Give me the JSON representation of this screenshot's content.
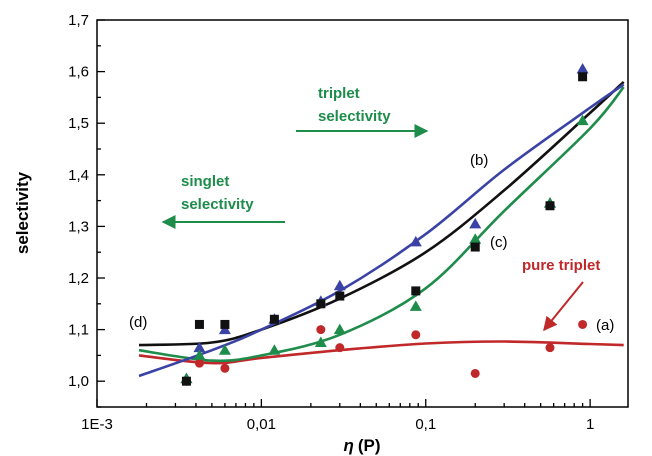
{
  "chart_data": {
    "type": "scatter",
    "xscale": "log",
    "xlim": [
      0.001,
      1.7
    ],
    "ylim": [
      0.95,
      1.7
    ],
    "xticks": [
      "1E-3",
      "0,01",
      "0,1",
      "1"
    ],
    "xtick_values": [
      0.001,
      0.01,
      0.1,
      1
    ],
    "yticks": [
      "1,0",
      "1,1",
      "1,2",
      "1,3",
      "1,4",
      "1,5",
      "1,6",
      "1,7"
    ],
    "ytick_values": [
      1.0,
      1.1,
      1.2,
      1.3,
      1.4,
      1.5,
      1.6,
      1.7
    ],
    "xlabel_symbol": "η",
    "xlabel_unit": "(P)",
    "ylabel": "selectivity",
    "series": [
      {
        "label": "(a)",
        "marker": "circle",
        "color": "#c0282a",
        "points": [
          [
            0.0035,
            1.0
          ],
          [
            0.0042,
            1.035
          ],
          [
            0.006,
            1.025
          ],
          [
            0.023,
            1.1
          ],
          [
            0.03,
            1.065
          ],
          [
            0.087,
            1.09
          ],
          [
            0.2,
            1.015
          ],
          [
            0.57,
            1.065
          ],
          [
            0.9,
            1.11
          ]
        ],
        "fit": [
          [
            0.0018,
            1.05
          ],
          [
            0.005,
            1.035
          ],
          [
            0.01,
            1.045
          ],
          [
            0.03,
            1.06
          ],
          [
            0.1,
            1.073
          ],
          [
            0.3,
            1.077
          ],
          [
            1,
            1.072
          ],
          [
            1.6,
            1.07
          ]
        ]
      },
      {
        "label": "(b)",
        "marker": "triangle",
        "color": "#3a43a5",
        "points": [
          [
            0.0035,
            1.005
          ],
          [
            0.0042,
            1.065
          ],
          [
            0.006,
            1.1
          ],
          [
            0.012,
            1.12
          ],
          [
            0.023,
            1.155
          ],
          [
            0.03,
            1.185
          ],
          [
            0.087,
            1.27
          ],
          [
            0.2,
            1.305
          ],
          [
            0.57,
            1.345
          ],
          [
            0.9,
            1.605
          ]
        ],
        "fit": [
          [
            0.0018,
            1.01
          ],
          [
            0.005,
            1.06
          ],
          [
            0.01,
            1.1
          ],
          [
            0.03,
            1.175
          ],
          [
            0.1,
            1.285
          ],
          [
            0.3,
            1.41
          ],
          [
            1,
            1.53
          ],
          [
            1.6,
            1.575
          ]
        ]
      },
      {
        "label": "(c)",
        "marker": "triangle",
        "color": "#1e8c4a",
        "points": [
          [
            0.0035,
            1.005
          ],
          [
            0.0042,
            1.05
          ],
          [
            0.006,
            1.06
          ],
          [
            0.012,
            1.06
          ],
          [
            0.023,
            1.075
          ],
          [
            0.03,
            1.1
          ],
          [
            0.087,
            1.145
          ],
          [
            0.2,
            1.275
          ],
          [
            0.57,
            1.345
          ],
          [
            0.9,
            1.505
          ]
        ],
        "fit": [
          [
            0.0018,
            1.06
          ],
          [
            0.005,
            1.04
          ],
          [
            0.01,
            1.05
          ],
          [
            0.03,
            1.09
          ],
          [
            0.1,
            1.18
          ],
          [
            0.3,
            1.33
          ],
          [
            1,
            1.49
          ],
          [
            1.6,
            1.57
          ]
        ]
      },
      {
        "label": "(d)",
        "marker": "square",
        "color": "#111111",
        "points": [
          [
            0.0035,
            1.0
          ],
          [
            0.0042,
            1.11
          ],
          [
            0.006,
            1.11
          ],
          [
            0.012,
            1.12
          ],
          [
            0.023,
            1.15
          ],
          [
            0.03,
            1.165
          ],
          [
            0.087,
            1.175
          ],
          [
            0.2,
            1.26
          ],
          [
            0.57,
            1.34
          ],
          [
            0.9,
            1.59
          ]
        ],
        "fit": [
          [
            0.0018,
            1.07
          ],
          [
            0.005,
            1.075
          ],
          [
            0.01,
            1.1
          ],
          [
            0.03,
            1.16
          ],
          [
            0.1,
            1.25
          ],
          [
            0.3,
            1.37
          ],
          [
            1,
            1.52
          ],
          [
            1.6,
            1.58
          ]
        ]
      }
    ],
    "annotations": {
      "singlet": {
        "line1": "singlet",
        "line2": "selectivity",
        "color": "#1e8c4a"
      },
      "triplet": {
        "line1": "triplet",
        "line2": "selectivity",
        "color": "#1e8c4a"
      },
      "pure_triplet": {
        "text": "pure triplet",
        "color": "#c0282a"
      }
    }
  }
}
